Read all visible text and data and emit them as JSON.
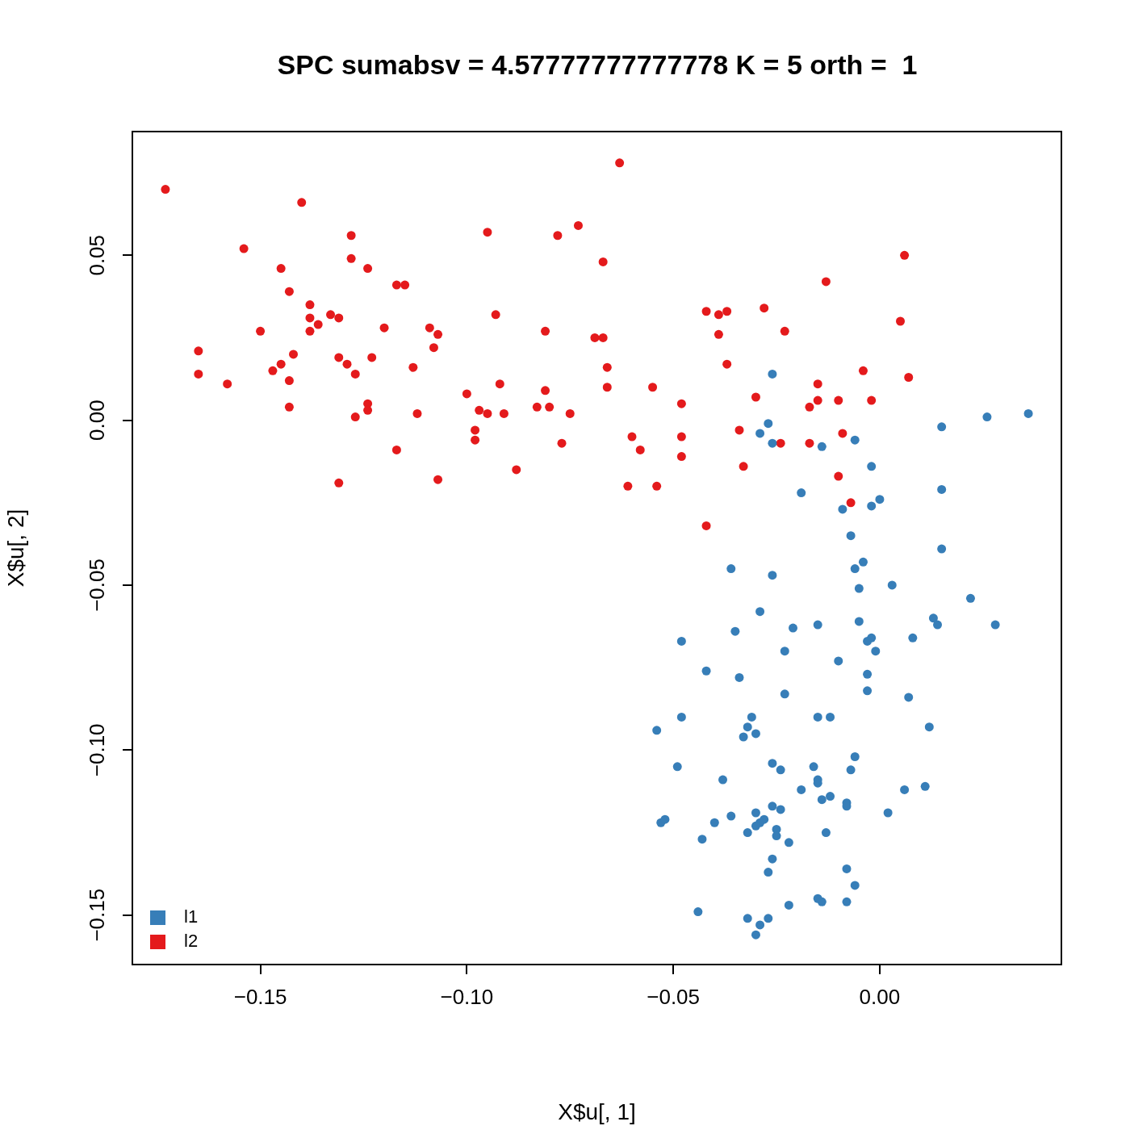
{
  "chart_data": {
    "type": "scatter",
    "title": "SPC sumabsv = 4.57777777777778 K = 5 orth =  1",
    "xlabel": "X$u[, 1]",
    "ylabel": "X$u[, 2]",
    "xlim": [
      -0.181,
      0.044
    ],
    "ylim": [
      -0.165,
      0.0875
    ],
    "xticks": [
      {
        "value": -0.15,
        "label": "−0.15"
      },
      {
        "value": -0.1,
        "label": "−0.10"
      },
      {
        "value": -0.05,
        "label": "−0.05"
      },
      {
        "value": 0,
        "label": "0.00"
      }
    ],
    "yticks": [
      {
        "value": -0.15,
        "label": "−0.15"
      },
      {
        "value": -0.1,
        "label": "−0.10"
      },
      {
        "value": -0.05,
        "label": "−0.05"
      },
      {
        "value": 0,
        "label": "0.00"
      },
      {
        "value": 0.05,
        "label": "0.05"
      }
    ],
    "grid": false,
    "legend": "bottom left",
    "marker": "circle",
    "series": [
      {
        "name": "l1",
        "color": "#377eb8",
        "x": [
          -0.026,
          0.015,
          0.026,
          0.036,
          -0.027,
          -0.029,
          -0.026,
          -0.014,
          -0.006,
          -0.002,
          -0.019,
          0.015,
          0.0,
          -0.009,
          -0.002,
          -0.007,
          0.015,
          -0.004,
          -0.036,
          -0.006,
          -0.026,
          -0.005,
          0.003,
          0.022,
          -0.029,
          -0.005,
          0.013,
          0.014,
          0.028,
          -0.035,
          -0.015,
          -0.021,
          -0.048,
          -0.002,
          -0.003,
          0.008,
          -0.023,
          -0.001,
          -0.01,
          -0.042,
          -0.003,
          -0.034,
          -0.023,
          -0.003,
          0.007,
          -0.048,
          -0.031,
          -0.015,
          -0.012,
          0.012,
          -0.054,
          -0.032,
          -0.03,
          -0.033,
          -0.006,
          -0.026,
          -0.049,
          -0.016,
          -0.024,
          -0.007,
          -0.038,
          -0.015,
          -0.015,
          -0.019,
          0.011,
          0.006,
          -0.014,
          -0.012,
          -0.008,
          -0.008,
          -0.026,
          -0.024,
          0.002,
          -0.053,
          -0.052,
          -0.04,
          -0.036,
          -0.03,
          -0.028,
          -0.029,
          -0.03,
          -0.025,
          -0.032,
          -0.025,
          -0.013,
          -0.022,
          -0.043,
          -0.026,
          -0.008,
          -0.027,
          -0.006,
          -0.015,
          -0.014,
          -0.008,
          -0.022,
          -0.044,
          -0.032,
          -0.027,
          -0.029,
          -0.03
        ],
        "values": [
          0.014,
          -0.002,
          0.001,
          0.002,
          -0.001,
          -0.004,
          -0.007,
          -0.008,
          -0.006,
          -0.014,
          -0.022,
          -0.021,
          -0.024,
          -0.027,
          -0.026,
          -0.035,
          -0.039,
          -0.043,
          -0.045,
          -0.045,
          -0.047,
          -0.051,
          -0.05,
          -0.054,
          -0.058,
          -0.061,
          -0.06,
          -0.062,
          -0.062,
          -0.064,
          -0.062,
          -0.063,
          -0.067,
          -0.066,
          -0.067,
          -0.066,
          -0.07,
          -0.07,
          -0.073,
          -0.076,
          -0.077,
          -0.078,
          -0.083,
          -0.082,
          -0.084,
          -0.09,
          -0.09,
          -0.09,
          -0.09,
          -0.093,
          -0.094,
          -0.093,
          -0.095,
          -0.096,
          -0.102,
          -0.104,
          -0.105,
          -0.105,
          -0.106,
          -0.106,
          -0.109,
          -0.109,
          -0.11,
          -0.112,
          -0.111,
          -0.112,
          -0.115,
          -0.114,
          -0.116,
          -0.117,
          -0.117,
          -0.118,
          -0.119,
          -0.122,
          -0.121,
          -0.122,
          -0.12,
          -0.119,
          -0.121,
          -0.122,
          -0.123,
          -0.124,
          -0.125,
          -0.126,
          -0.125,
          -0.128,
          -0.127,
          -0.133,
          -0.136,
          -0.137,
          -0.141,
          -0.145,
          -0.146,
          -0.146,
          -0.147,
          -0.149,
          -0.151,
          -0.151,
          -0.153,
          -0.156
        ]
      },
      {
        "name": "l2",
        "color": "#e41a1c",
        "x": [
          -0.173,
          -0.063,
          -0.14,
          -0.154,
          -0.128,
          -0.095,
          -0.078,
          -0.073,
          -0.128,
          -0.145,
          -0.124,
          -0.067,
          -0.117,
          -0.115,
          -0.143,
          -0.013,
          0.006,
          -0.138,
          -0.133,
          -0.131,
          -0.138,
          -0.093,
          -0.042,
          -0.037,
          -0.039,
          -0.028,
          0.005,
          -0.15,
          -0.138,
          -0.136,
          -0.12,
          -0.109,
          -0.107,
          -0.081,
          -0.069,
          -0.067,
          -0.039,
          -0.023,
          -0.165,
          -0.142,
          -0.131,
          -0.129,
          -0.123,
          -0.108,
          -0.113,
          -0.066,
          -0.037,
          -0.165,
          -0.147,
          -0.145,
          -0.143,
          -0.127,
          -0.158,
          -0.092,
          -0.081,
          -0.066,
          -0.055,
          -0.015,
          -0.004,
          0.007,
          -0.143,
          -0.124,
          -0.124,
          -0.127,
          -0.112,
          -0.1,
          -0.097,
          -0.095,
          -0.091,
          -0.083,
          -0.08,
          -0.075,
          -0.048,
          -0.03,
          -0.015,
          -0.01,
          -0.002,
          -0.017,
          -0.098,
          -0.098,
          -0.034,
          -0.06,
          -0.048,
          -0.024,
          -0.077,
          -0.009,
          -0.017,
          -0.117,
          -0.058,
          -0.048,
          -0.088,
          -0.033,
          -0.01,
          -0.131,
          -0.107,
          -0.061,
          -0.054,
          -0.007,
          -0.042
        ],
        "values": [
          0.07,
          0.078,
          0.066,
          0.052,
          0.056,
          0.057,
          0.056,
          0.059,
          0.049,
          0.046,
          0.046,
          0.048,
          0.041,
          0.041,
          0.039,
          0.042,
          0.05,
          0.035,
          0.032,
          0.031,
          0.031,
          0.032,
          0.033,
          0.033,
          0.032,
          0.034,
          0.03,
          0.027,
          0.027,
          0.029,
          0.028,
          0.028,
          0.026,
          0.027,
          0.025,
          0.025,
          0.026,
          0.027,
          0.021,
          0.02,
          0.019,
          0.017,
          0.019,
          0.022,
          0.016,
          0.016,
          0.017,
          0.014,
          0.015,
          0.017,
          0.012,
          0.014,
          0.011,
          0.011,
          0.009,
          0.01,
          0.01,
          0.011,
          0.015,
          0.013,
          0.004,
          0.005,
          0.003,
          0.001,
          0.002,
          0.008,
          0.003,
          0.002,
          0.002,
          0.004,
          0.004,
          0.002,
          0.005,
          0.007,
          0.006,
          0.006,
          0.006,
          0.004,
          -0.003,
          -0.006,
          -0.003,
          -0.005,
          -0.005,
          -0.007,
          -0.007,
          -0.004,
          -0.007,
          -0.009,
          -0.009,
          -0.011,
          -0.015,
          -0.014,
          -0.017,
          -0.019,
          -0.018,
          -0.02,
          -0.02,
          -0.025,
          -0.032
        ]
      }
    ]
  }
}
